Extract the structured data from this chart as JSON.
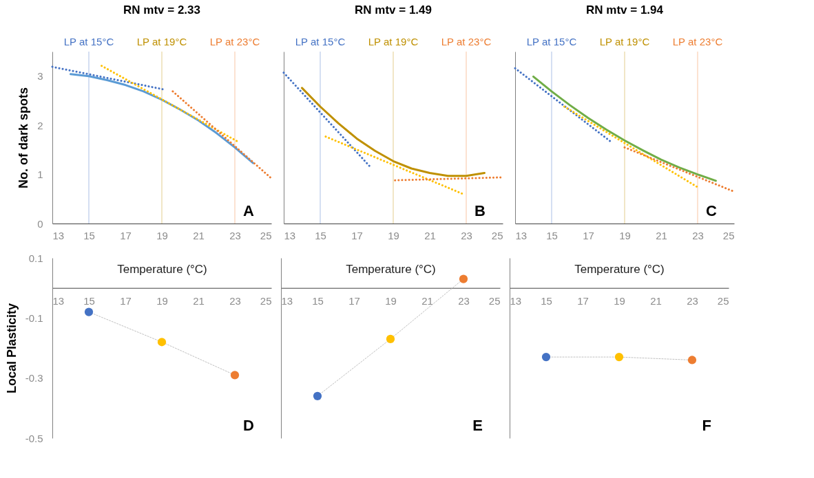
{
  "chart_data": [
    {
      "type": "line",
      "title": "RN mtv = 2.33",
      "ylabel": "No. of dark spots",
      "xlim": [
        13,
        25
      ],
      "ylim": [
        0,
        3.5
      ],
      "xticks": [
        13,
        15,
        17,
        19,
        21,
        23,
        25
      ],
      "yticks": [
        0,
        1,
        2,
        3
      ],
      "grid": false,
      "annotations": [
        "A"
      ],
      "ref_lines": [
        {
          "axis": "x",
          "value": 15,
          "label": "LP at 15°C",
          "color": "#4472c4"
        },
        {
          "axis": "x",
          "value": 19,
          "label": "LP at 19°C",
          "color": "#bf9000"
        },
        {
          "axis": "x",
          "value": 23,
          "label": "LP at 23°C",
          "color": "#ed7d31"
        }
      ],
      "series": [
        {
          "color": "#5b9bd5",
          "line_style": "solid",
          "x": [
            14,
            15,
            16,
            17,
            18,
            19,
            20,
            21,
            22,
            23,
            24
          ],
          "values": [
            3.04,
            3.0,
            2.92,
            2.82,
            2.69,
            2.52,
            2.32,
            2.1,
            1.84,
            1.55,
            1.23
          ]
        },
        {
          "color": "#4472c4",
          "line_style": "dotted",
          "x": [
            13,
            19.1
          ],
          "values": [
            3.19,
            2.73
          ]
        },
        {
          "color": "#ffc000",
          "line_style": "dotted",
          "x": [
            15.7,
            23.2
          ],
          "values": [
            3.21,
            1.66
          ]
        },
        {
          "color": "#ed7d31",
          "line_style": "dotted",
          "x": [
            19.6,
            25
          ],
          "values": [
            2.69,
            0.92
          ]
        }
      ]
    },
    {
      "type": "line",
      "title": "RN mtv = 1.49",
      "xlim": [
        13,
        25
      ],
      "ylim": [
        0,
        3.5
      ],
      "xticks": [
        13,
        15,
        17,
        19,
        21,
        23,
        25
      ],
      "yticks": [
        0,
        1,
        2,
        3
      ],
      "tick_labels": "x",
      "grid": false,
      "annotations": [
        "B"
      ],
      "ref_lines": [
        {
          "axis": "x",
          "value": 15,
          "label": "LP at 15°C",
          "color": "#4472c4"
        },
        {
          "axis": "x",
          "value": 19,
          "label": "LP at 19°C",
          "color": "#bf9000"
        },
        {
          "axis": "x",
          "value": 23,
          "label": "LP at 23°C",
          "color": "#ed7d31"
        }
      ],
      "series": [
        {
          "color": "#bf9000",
          "line_style": "solid",
          "x": [
            14,
            15,
            16,
            17,
            18,
            19,
            20,
            21,
            22,
            23,
            24
          ],
          "values": [
            2.76,
            2.38,
            2.04,
            1.73,
            1.48,
            1.27,
            1.12,
            1.03,
            0.97,
            0.97,
            1.03
          ]
        },
        {
          "color": "#4472c4",
          "line_style": "dotted",
          "x": [
            13,
            17.7
          ],
          "values": [
            3.07,
            1.17
          ]
        },
        {
          "color": "#ffc000",
          "line_style": "dotted",
          "x": [
            15.3,
            22.9
          ],
          "values": [
            1.77,
            0.59
          ]
        },
        {
          "color": "#ed7d31",
          "line_style": "dotted",
          "x": [
            19.1,
            25
          ],
          "values": [
            0.88,
            0.94
          ]
        }
      ]
    },
    {
      "type": "line",
      "title": "RN mtv = 1.94",
      "xlim": [
        13,
        25
      ],
      "ylim": [
        0,
        3.5
      ],
      "xticks": [
        13,
        15,
        17,
        19,
        21,
        23,
        25
      ],
      "yticks": [
        0,
        1,
        2,
        3
      ],
      "tick_labels": "x",
      "grid": false,
      "annotations": [
        "C"
      ],
      "ref_lines": [
        {
          "axis": "x",
          "value": 15,
          "label": "LP at 15°C",
          "color": "#4472c4"
        },
        {
          "axis": "x",
          "value": 19,
          "label": "LP at 19°C",
          "color": "#bf9000"
        },
        {
          "axis": "x",
          "value": 23,
          "label": "LP at 23°C",
          "color": "#ed7d31"
        }
      ],
      "series": [
        {
          "color": "#70ad47",
          "line_style": "solid",
          "x": [
            14,
            15,
            16,
            17,
            18,
            19,
            20,
            21,
            22,
            23,
            24
          ],
          "values": [
            2.99,
            2.69,
            2.41,
            2.15,
            1.91,
            1.69,
            1.49,
            1.3,
            1.14,
            1.0,
            0.87
          ]
        },
        {
          "color": "#4472c4",
          "line_style": "dotted",
          "x": [
            13,
            18.3
          ],
          "values": [
            3.16,
            1.65
          ]
        },
        {
          "color": "#ffc000",
          "line_style": "dotted",
          "x": [
            15.7,
            23.0
          ],
          "values": [
            2.38,
            0.74
          ]
        },
        {
          "color": "#ed7d31",
          "line_style": "dotted",
          "x": [
            19.0,
            25
          ],
          "values": [
            1.55,
            0.65
          ]
        }
      ]
    },
    {
      "type": "line",
      "xlabel": "Temperature (°C)",
      "ylabel": "Local Plasticity",
      "x": [
        15,
        19,
        23
      ],
      "xlim": [
        13,
        25
      ],
      "ylim": [
        -0.5,
        0.1
      ],
      "xticks": [
        13,
        15,
        17,
        19,
        21,
        23,
        25
      ],
      "yticks": [
        0.1,
        -0.1,
        -0.3,
        -0.5
      ],
      "marker": "circle",
      "line_style": "dotted",
      "grid": false,
      "annotations": [
        "D"
      ],
      "series": [
        {
          "color": "#bfbfbf",
          "colors": [
            "#4472c4",
            "#ffc000",
            "#ed7d31"
          ],
          "values": [
            -0.08,
            -0.18,
            -0.29
          ]
        }
      ]
    },
    {
      "type": "line",
      "xlabel": "Temperature (°C)",
      "x": [
        15,
        19,
        23
      ],
      "xlim": [
        13,
        25
      ],
      "ylim": [
        -0.5,
        0.1
      ],
      "xticks": [
        13,
        15,
        17,
        19,
        21,
        23,
        25
      ],
      "yticks": [
        0.1,
        -0.1,
        -0.3,
        -0.5
      ],
      "tick_labels": "x",
      "marker": "circle",
      "line_style": "dotted",
      "grid": false,
      "annotations": [
        "E"
      ],
      "series": [
        {
          "color": "#bfbfbf",
          "colors": [
            "#4472c4",
            "#ffc000",
            "#ed7d31"
          ],
          "values": [
            -0.36,
            -0.17,
            0.03
          ]
        }
      ]
    },
    {
      "type": "line",
      "xlabel": "Temperature (°C)",
      "x": [
        15,
        19,
        23
      ],
      "xlim": [
        13,
        25
      ],
      "ylim": [
        -0.5,
        0.1
      ],
      "xticks": [
        13,
        15,
        17,
        19,
        21,
        23,
        25
      ],
      "yticks": [
        0.1,
        -0.1,
        -0.3,
        -0.5
      ],
      "tick_labels": "x",
      "marker": "circle",
      "line_style": "dotted",
      "grid": false,
      "annotations": [
        "F"
      ],
      "series": [
        {
          "color": "#bfbfbf",
          "colors": [
            "#4472c4",
            "#ffc000",
            "#ed7d31"
          ],
          "values": [
            -0.23,
            -0.23,
            -0.24
          ]
        }
      ]
    }
  ]
}
